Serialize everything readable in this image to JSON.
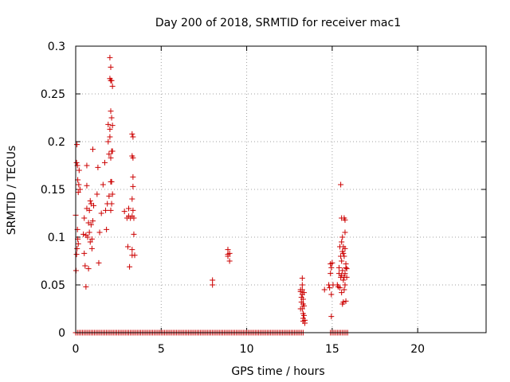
{
  "chart_data": {
    "type": "scatter",
    "title": "Day 200 of 2018, SRMTID for receiver mac1",
    "xlabel": "GPS time / hours",
    "ylabel": "SRMTID / TECUs",
    "xlim": [
      0,
      24
    ],
    "ylim": [
      0,
      0.3
    ],
    "xticks": [
      0,
      5,
      10,
      15,
      20
    ],
    "xtick_labels": [
      "0",
      "5",
      "10",
      "15",
      "20"
    ],
    "yticks": [
      0,
      0.05,
      0.1,
      0.15,
      0.2,
      0.25,
      0.3
    ],
    "ytick_labels": [
      "0",
      "0.05",
      "0.1",
      "0.15",
      "0.2",
      "0.25",
      "0.3"
    ],
    "grid": true,
    "marker": "+",
    "series_color": "#cc0000",
    "zero_baseline_segments": [
      [
        0.0,
        13.3
      ],
      [
        14.9,
        15.95
      ]
    ],
    "zero_baseline_step": 0.1,
    "series": [
      {
        "name": "SRMTID",
        "points": [
          [
            0.0,
            0.123
          ],
          [
            0.02,
            0.065
          ],
          [
            0.05,
            0.178
          ],
          [
            0.05,
            0.082
          ],
          [
            0.07,
            0.197
          ],
          [
            0.08,
            0.088
          ],
          [
            0.1,
            0.175
          ],
          [
            0.1,
            0.108
          ],
          [
            0.12,
            0.16
          ],
          [
            0.12,
            0.098
          ],
          [
            0.15,
            0.147
          ],
          [
            0.15,
            0.093
          ],
          [
            0.18,
            0.155
          ],
          [
            0.2,
            0.17
          ],
          [
            0.25,
            0.15
          ],
          [
            0.45,
            0.103
          ],
          [
            0.5,
            0.12
          ],
          [
            0.5,
            0.083
          ],
          [
            0.55,
            0.07
          ],
          [
            0.6,
            0.102
          ],
          [
            0.6,
            0.048
          ],
          [
            0.65,
            0.13
          ],
          [
            0.65,
            0.175
          ],
          [
            0.65,
            0.154
          ],
          [
            0.7,
            0.1
          ],
          [
            0.75,
            0.067
          ],
          [
            0.75,
            0.115
          ],
          [
            0.8,
            0.105
          ],
          [
            0.8,
            0.128
          ],
          [
            0.85,
            0.138
          ],
          [
            0.85,
            0.095
          ],
          [
            0.9,
            0.113
          ],
          [
            0.9,
            0.135
          ],
          [
            0.95,
            0.088
          ],
          [
            0.95,
            0.098
          ],
          [
            1.0,
            0.192
          ],
          [
            1.0,
            0.117
          ],
          [
            1.05,
            0.133
          ],
          [
            1.25,
            0.145
          ],
          [
            1.3,
            0.173
          ],
          [
            1.35,
            0.073
          ],
          [
            1.4,
            0.105
          ],
          [
            1.5,
            0.125
          ],
          [
            1.6,
            0.155
          ],
          [
            1.7,
            0.178
          ],
          [
            1.75,
            0.128
          ],
          [
            1.8,
            0.108
          ],
          [
            1.85,
            0.135
          ],
          [
            1.9,
            0.2
          ],
          [
            1.9,
            0.218
          ],
          [
            1.95,
            0.187
          ],
          [
            1.95,
            0.143
          ],
          [
            2.0,
            0.288
          ],
          [
            2.0,
            0.266
          ],
          [
            2.0,
            0.213
          ],
          [
            2.0,
            0.205
          ],
          [
            2.05,
            0.278
          ],
          [
            2.05,
            0.264
          ],
          [
            2.05,
            0.232
          ],
          [
            2.05,
            0.183
          ],
          [
            2.05,
            0.158
          ],
          [
            2.05,
            0.128
          ],
          [
            2.1,
            0.264
          ],
          [
            2.1,
            0.225
          ],
          [
            2.1,
            0.19
          ],
          [
            2.1,
            0.158
          ],
          [
            2.1,
            0.135
          ],
          [
            2.15,
            0.258
          ],
          [
            2.15,
            0.217
          ],
          [
            2.15,
            0.19
          ],
          [
            2.15,
            0.145
          ],
          [
            2.85,
            0.127
          ],
          [
            3.0,
            0.12
          ],
          [
            3.05,
            0.09
          ],
          [
            3.1,
            0.122
          ],
          [
            3.1,
            0.13
          ],
          [
            3.15,
            0.069
          ],
          [
            3.2,
            0.12
          ],
          [
            3.3,
            0.208
          ],
          [
            3.3,
            0.185
          ],
          [
            3.3,
            0.14
          ],
          [
            3.3,
            0.122
          ],
          [
            3.3,
            0.087
          ],
          [
            3.3,
            0.081
          ],
          [
            3.35,
            0.205
          ],
          [
            3.35,
            0.183
          ],
          [
            3.35,
            0.163
          ],
          [
            3.35,
            0.153
          ],
          [
            3.35,
            0.128
          ],
          [
            3.4,
            0.12
          ],
          [
            3.4,
            0.103
          ],
          [
            3.45,
            0.081
          ],
          [
            8.0,
            0.055
          ],
          [
            8.0,
            0.05
          ],
          [
            8.9,
            0.087
          ],
          [
            8.9,
            0.082
          ],
          [
            8.9,
            0.08
          ],
          [
            9.0,
            0.075
          ],
          [
            9.0,
            0.083
          ],
          [
            13.15,
            0.043
          ],
          [
            13.15,
            0.025
          ],
          [
            13.15,
            0.045
          ],
          [
            13.2,
            0.032
          ],
          [
            13.2,
            0.037
          ],
          [
            13.25,
            0.05
          ],
          [
            13.25,
            0.045
          ],
          [
            13.25,
            0.04
          ],
          [
            13.25,
            0.025
          ],
          [
            13.25,
            0.057
          ],
          [
            13.3,
            0.035
          ],
          [
            13.3,
            0.03
          ],
          [
            13.3,
            0.02
          ],
          [
            13.3,
            0.015
          ],
          [
            13.3,
            0.012
          ],
          [
            13.35,
            0.042
          ],
          [
            13.35,
            0.028
          ],
          [
            13.35,
            0.018
          ],
          [
            13.4,
            0.01
          ],
          [
            13.4,
            0.013
          ],
          [
            14.55,
            0.045
          ],
          [
            14.8,
            0.05
          ],
          [
            14.85,
            0.047
          ],
          [
            14.9,
            0.072
          ],
          [
            14.9,
            0.062
          ],
          [
            14.95,
            0.068
          ],
          [
            14.95,
            0.04
          ],
          [
            14.95,
            0.017
          ],
          [
            15.0,
            0.073
          ],
          [
            15.05,
            0.05
          ],
          [
            15.3,
            0.05
          ],
          [
            15.35,
            0.048
          ],
          [
            15.4,
            0.068
          ],
          [
            15.4,
            0.062
          ],
          [
            15.45,
            0.09
          ],
          [
            15.45,
            0.047
          ],
          [
            15.5,
            0.155
          ],
          [
            15.5,
            0.08
          ],
          [
            15.5,
            0.058
          ],
          [
            15.55,
            0.12
          ],
          [
            15.55,
            0.095
          ],
          [
            15.55,
            0.075
          ],
          [
            15.55,
            0.06
          ],
          [
            15.55,
            0.042
          ],
          [
            15.6,
            0.1
          ],
          [
            15.6,
            0.085
          ],
          [
            15.6,
            0.065
          ],
          [
            15.6,
            0.03
          ],
          [
            15.65,
            0.09
          ],
          [
            15.65,
            0.083
          ],
          [
            15.65,
            0.055
          ],
          [
            15.65,
            0.032
          ],
          [
            15.7,
            0.12
          ],
          [
            15.7,
            0.08
          ],
          [
            15.7,
            0.058
          ],
          [
            15.7,
            0.045
          ],
          [
            15.75,
            0.118
          ],
          [
            15.75,
            0.105
          ],
          [
            15.75,
            0.088
          ],
          [
            15.75,
            0.062
          ],
          [
            15.75,
            0.05
          ],
          [
            15.8,
            0.072
          ],
          [
            15.8,
            0.068
          ],
          [
            15.8,
            0.033
          ],
          [
            15.85,
            0.058
          ],
          [
            15.85,
            0.067
          ]
        ]
      }
    ]
  }
}
